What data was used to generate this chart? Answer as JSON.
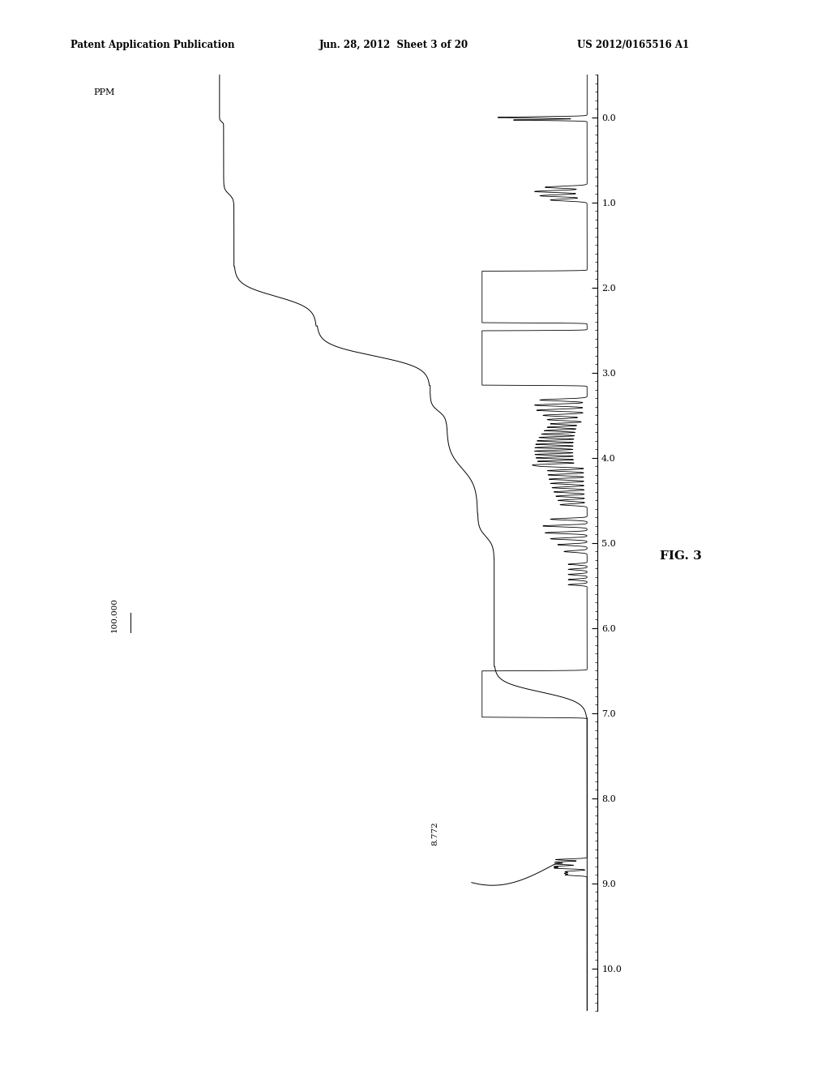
{
  "header_left": "Patent Application Publication",
  "header_center": "Jun. 28, 2012  Sheet 3 of 20",
  "header_right": "US 2012/0165516 A1",
  "fig_label": "FIG. 3",
  "annotation_8772": "8.772",
  "annotation_100000": "100.000",
  "ppm_label": "PPM",
  "background_color": "#ffffff",
  "spectrum_color": "#000000",
  "figsize": [
    10.24,
    13.2
  ],
  "dpi": 100
}
